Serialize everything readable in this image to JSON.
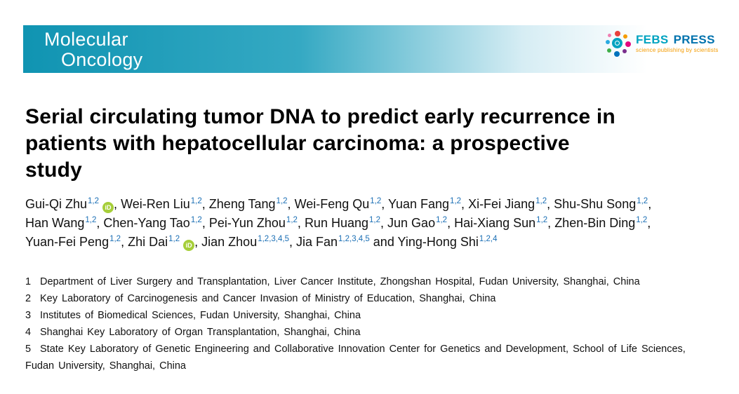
{
  "banner": {
    "journal_line1": "Molecular",
    "journal_line2": "Oncology"
  },
  "logo": {
    "name_primary": "FEBS",
    "name_secondary": "PRESS",
    "tagline": "science publishing by scientists"
  },
  "article": {
    "title": "Serial circulating tumor DNA to predict early recurrence in patients with hepatocellular carcinoma: a prospective study",
    "title_lines": [
      "Serial circulating tumor DNA to predict early recurrence in",
      "patients with hepatocellular carcinoma: a prospective",
      "study"
    ]
  },
  "orcid_label": "iD",
  "author_separator": ", ",
  "author_final_separator": " and ",
  "authors": [
    {
      "name": "Gui-Qi Zhu",
      "sup": "1,2",
      "orcid": true
    },
    {
      "name": "Wei-Ren Liu",
      "sup": "1,2"
    },
    {
      "name": "Zheng Tang",
      "sup": "1,2"
    },
    {
      "name": "Wei-Feng Qu",
      "sup": "1,2"
    },
    {
      "name": "Yuan Fang",
      "sup": "1,2"
    },
    {
      "name": "Xi-Fei Jiang",
      "sup": "1,2"
    },
    {
      "name": "Shu-Shu Song",
      "sup": "1,2"
    },
    {
      "name": "Han Wang",
      "sup": "1,2"
    },
    {
      "name": "Chen-Yang Tao",
      "sup": "1,2"
    },
    {
      "name": "Pei-Yun Zhou",
      "sup": "1,2"
    },
    {
      "name": "Run Huang",
      "sup": "1,2"
    },
    {
      "name": "Jun Gao",
      "sup": "1,2"
    },
    {
      "name": "Hai-Xiang Sun",
      "sup": "1,2"
    },
    {
      "name": "Zhen-Bin Ding",
      "sup": "1,2"
    },
    {
      "name": "Yuan-Fei Peng",
      "sup": "1,2"
    },
    {
      "name": "Zhi Dai",
      "sup": "1,2",
      "orcid": true
    },
    {
      "name": "Jian Zhou",
      "sup": "1,2,3,4,5"
    },
    {
      "name": "Jia Fan",
      "sup": "1,2,3,4,5"
    },
    {
      "name": "Ying-Hong Shi",
      "sup": "1,2,4"
    }
  ],
  "affiliations": [
    {
      "num": "1",
      "text": "Department of Liver Surgery and Transplantation, Liver Cancer Institute, Zhongshan Hospital, Fudan University, Shanghai, China"
    },
    {
      "num": "2",
      "text": "Key Laboratory of Carcinogenesis and Cancer Invasion of Ministry of Education, Shanghai, China"
    },
    {
      "num": "3",
      "text": "Institutes of Biomedical Sciences, Fudan University, Shanghai, China"
    },
    {
      "num": "4",
      "text": "Shanghai Key Laboratory of Organ Transplantation, Shanghai, China"
    },
    {
      "num": "5",
      "text": "State Key Laboratory of Genetic Engineering and Collaborative Innovation Center for Genetics and Development, School of Life Sciences, Fudan University, Shanghai, China"
    }
  ],
  "colors": {
    "banner_teal": "#1094b2",
    "banner_teal_light": "#35a9c3",
    "superscript_blue": "#1b6fb5",
    "orcid_green": "#a6ce39",
    "febs_teal": "#00a3c0",
    "febs_blue": "#0072ad",
    "tagline_orange": "#f49b00",
    "text_black": "#111111"
  }
}
